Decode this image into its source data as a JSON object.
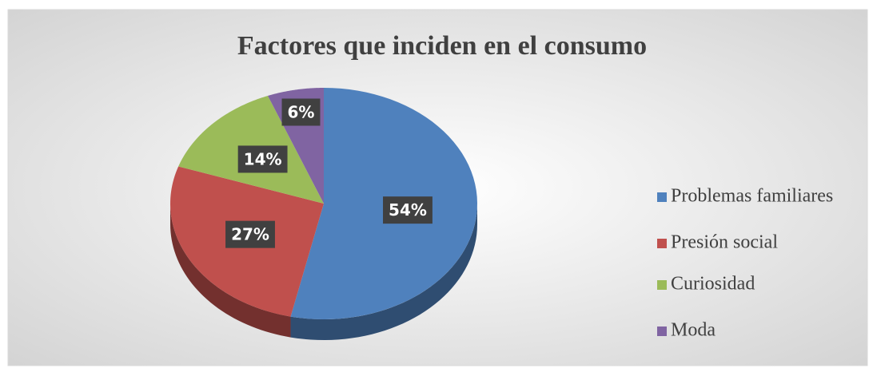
{
  "chart_data": {
    "type": "pie",
    "title": "Factores que inciden en el consumo",
    "categories": [
      "Problemas familiares",
      "Presión social",
      "Curiosidad",
      "Moda"
    ],
    "values": [
      54,
      27,
      14,
      6
    ],
    "value_labels": [
      "54%",
      "27%",
      "14%",
      "6%"
    ],
    "colors": [
      "#4f81bd",
      "#c0504d",
      "#9bbb59",
      "#8064a2"
    ],
    "legend": "right"
  }
}
